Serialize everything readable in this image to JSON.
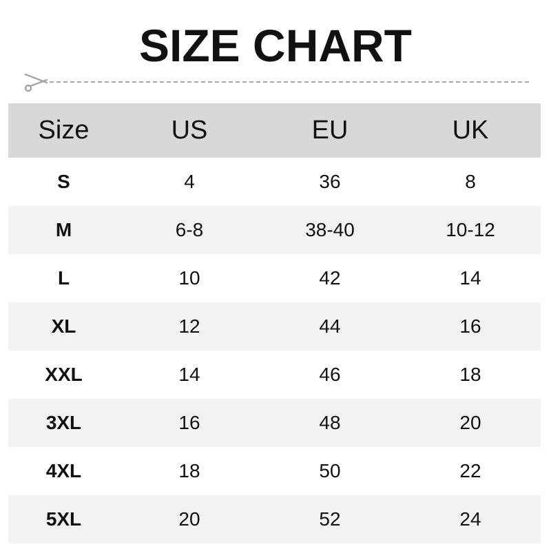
{
  "title": "SIZE CHART",
  "colors": {
    "header_bg": "#d8d8d8",
    "alt_row_bg": "#f2f2f2",
    "scissors": "#a6a6a6"
  },
  "icons": {
    "cut_line": "scissors-icon"
  },
  "table": {
    "headers": [
      "Size",
      "US",
      "EU",
      "UK"
    ],
    "rows": [
      [
        "S",
        "4",
        "36",
        "8"
      ],
      [
        "M",
        "6-8",
        "38-40",
        "10-12"
      ],
      [
        "L",
        "10",
        "42",
        "14"
      ],
      [
        "XL",
        "12",
        "44",
        "16"
      ],
      [
        "XXL",
        "14",
        "46",
        "18"
      ],
      [
        "3XL",
        "16",
        "48",
        "20"
      ],
      [
        "4XL",
        "18",
        "50",
        "22"
      ],
      [
        "5XL",
        "20",
        "52",
        "24"
      ]
    ]
  }
}
